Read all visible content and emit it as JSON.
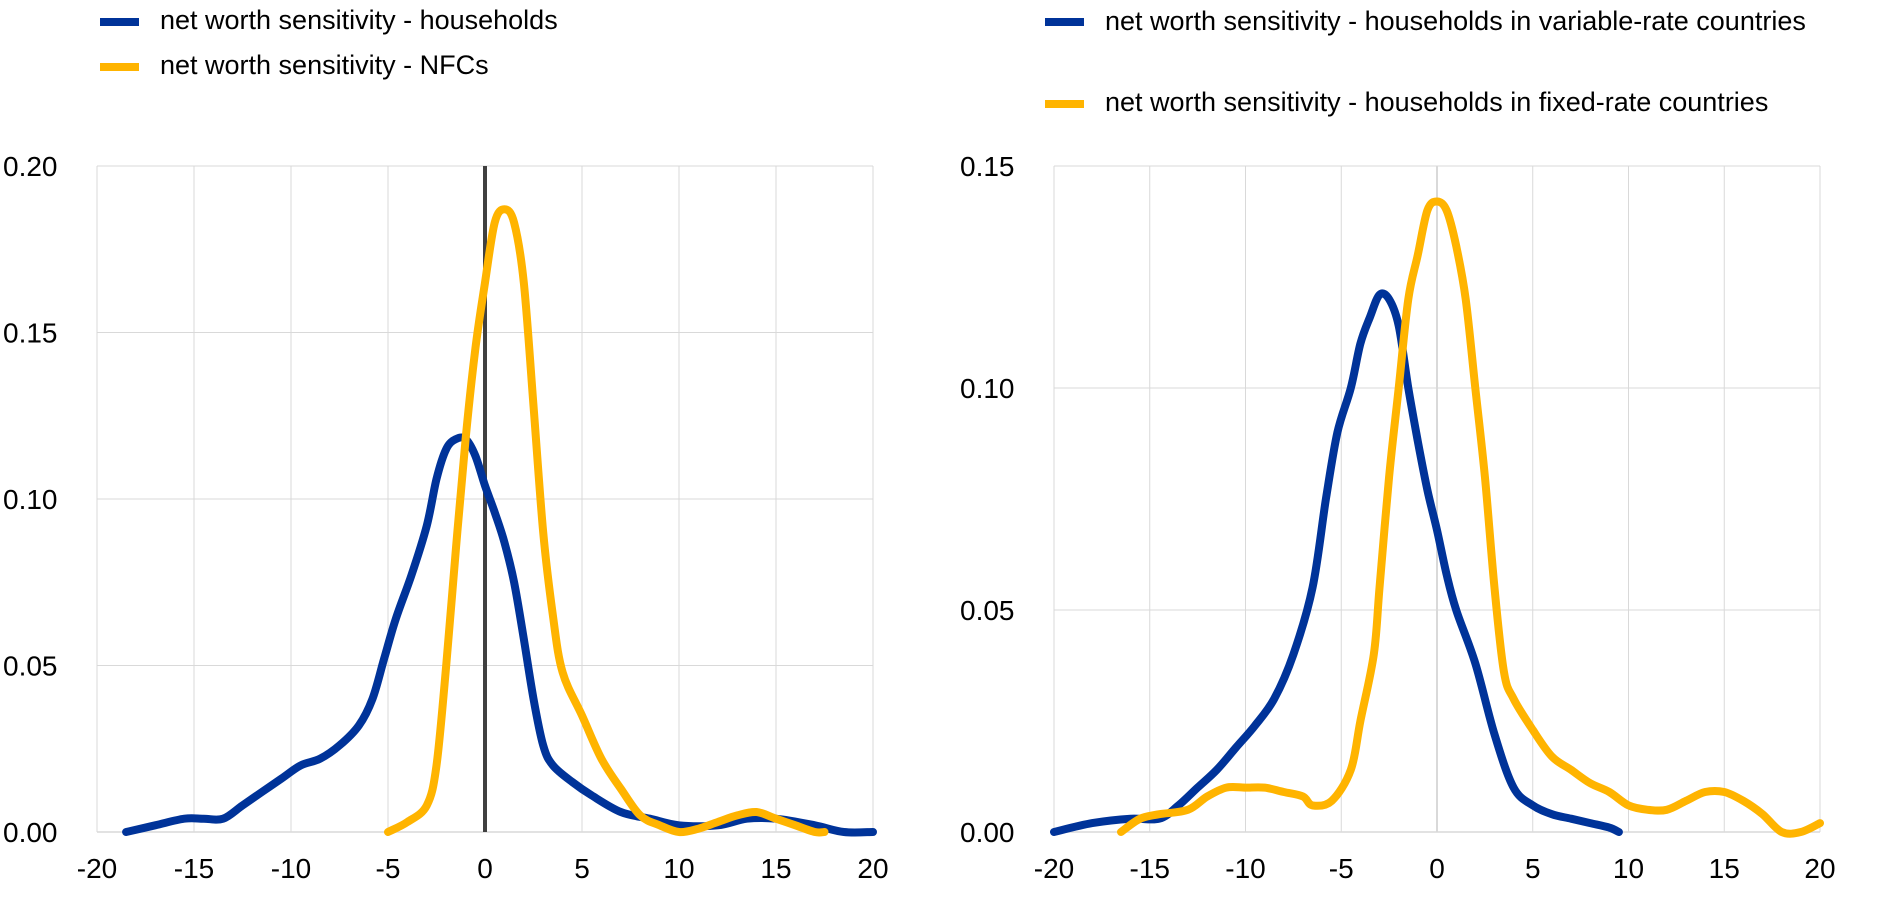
{
  "colors": {
    "households": "#003399",
    "nfcs": "#FFB400",
    "grid": "#d9d9d9",
    "zero_line": "#404040"
  },
  "chart_data": [
    {
      "type": "line",
      "panel": "left",
      "xlim": [
        -20,
        20
      ],
      "ylim": [
        0,
        0.2
      ],
      "xticks": [
        "-20",
        "-15",
        "-10",
        "-5",
        "0",
        "5",
        "10",
        "15",
        "20"
      ],
      "yticks": [
        "0.00",
        "0.05",
        "0.10",
        "0.15",
        "0.20"
      ],
      "grid": true,
      "vertical_zero_line": true,
      "legend": "top-left",
      "series": [
        {
          "name": "net worth sensitivity - households",
          "color": "#003399",
          "points": [
            [
              -18.5,
              0.0
            ],
            [
              -17,
              0.002
            ],
            [
              -15.5,
              0.004
            ],
            [
              -14.5,
              0.004
            ],
            [
              -13.5,
              0.004
            ],
            [
              -12.5,
              0.008
            ],
            [
              -11.5,
              0.012
            ],
            [
              -10.5,
              0.016
            ],
            [
              -9.5,
              0.02
            ],
            [
              -8.5,
              0.022
            ],
            [
              -7.5,
              0.026
            ],
            [
              -6.5,
              0.032
            ],
            [
              -5.8,
              0.04
            ],
            [
              -5.2,
              0.052
            ],
            [
              -4.6,
              0.064
            ],
            [
              -3.8,
              0.077
            ],
            [
              -3.0,
              0.092
            ],
            [
              -2.5,
              0.106
            ],
            [
              -2.0,
              0.115
            ],
            [
              -1.5,
              0.118
            ],
            [
              -1.0,
              0.118
            ],
            [
              -0.5,
              0.113
            ],
            [
              0.0,
              0.104
            ],
            [
              0.5,
              0.096
            ],
            [
              1.0,
              0.087
            ],
            [
              1.5,
              0.075
            ],
            [
              2.0,
              0.058
            ],
            [
              2.5,
              0.04
            ],
            [
              3.0,
              0.026
            ],
            [
              3.5,
              0.02
            ],
            [
              4.5,
              0.015
            ],
            [
              5.5,
              0.011
            ],
            [
              7.0,
              0.006
            ],
            [
              8.5,
              0.004
            ],
            [
              10.0,
              0.002
            ],
            [
              12.0,
              0.002
            ],
            [
              13.5,
              0.004
            ],
            [
              15.0,
              0.004
            ],
            [
              17.0,
              0.002
            ],
            [
              18.5,
              0.0
            ],
            [
              20.0,
              0.0
            ]
          ]
        },
        {
          "name": "net worth sensitivity - NFCs",
          "color": "#FFB400",
          "points": [
            [
              -5.0,
              0.0
            ],
            [
              -4.0,
              0.003
            ],
            [
              -3.0,
              0.008
            ],
            [
              -2.5,
              0.02
            ],
            [
              -2.0,
              0.05
            ],
            [
              -1.5,
              0.085
            ],
            [
              -1.0,
              0.118
            ],
            [
              -0.5,
              0.145
            ],
            [
              0.0,
              0.165
            ],
            [
              0.5,
              0.183
            ],
            [
              1.0,
              0.187
            ],
            [
              1.5,
              0.183
            ],
            [
              2.0,
              0.165
            ],
            [
              2.5,
              0.128
            ],
            [
              3.0,
              0.09
            ],
            [
              3.5,
              0.065
            ],
            [
              4.0,
              0.048
            ],
            [
              5.0,
              0.035
            ],
            [
              6.0,
              0.022
            ],
            [
              7.0,
              0.013
            ],
            [
              8.0,
              0.005
            ],
            [
              9.0,
              0.002
            ],
            [
              10.0,
              0.0
            ],
            [
              11.0,
              0.001
            ],
            [
              12.0,
              0.003
            ],
            [
              13.0,
              0.005
            ],
            [
              14.0,
              0.006
            ],
            [
              15.0,
              0.004
            ],
            [
              16.0,
              0.002
            ],
            [
              17.0,
              0.0
            ],
            [
              17.5,
              0.0
            ]
          ]
        }
      ]
    },
    {
      "type": "line",
      "panel": "right",
      "xlim": [
        -20,
        20
      ],
      "ylim": [
        0,
        0.15
      ],
      "xticks": [
        "-20",
        "-15",
        "-10",
        "-5",
        "0",
        "5",
        "10",
        "15",
        "20"
      ],
      "yticks": [
        "0.00",
        "0.05",
        "0.10",
        "0.15"
      ],
      "grid": true,
      "vertical_zero_line": true,
      "legend": "top-left",
      "series": [
        {
          "name": "net worth sensitivity - households in variable-rate countries",
          "color": "#003399",
          "points": [
            [
              -20.0,
              0.0
            ],
            [
              -18.0,
              0.002
            ],
            [
              -16.0,
              0.003
            ],
            [
              -14.5,
              0.003
            ],
            [
              -13.5,
              0.006
            ],
            [
              -12.5,
              0.01
            ],
            [
              -11.5,
              0.014
            ],
            [
              -10.5,
              0.019
            ],
            [
              -9.5,
              0.024
            ],
            [
              -8.5,
              0.03
            ],
            [
              -7.5,
              0.04
            ],
            [
              -6.5,
              0.055
            ],
            [
              -5.8,
              0.075
            ],
            [
              -5.2,
              0.09
            ],
            [
              -4.5,
              0.1
            ],
            [
              -4.0,
              0.11
            ],
            [
              -3.5,
              0.116
            ],
            [
              -3.0,
              0.121
            ],
            [
              -2.5,
              0.12
            ],
            [
              -2.0,
              0.114
            ],
            [
              -1.5,
              0.1
            ],
            [
              -1.0,
              0.088
            ],
            [
              -0.5,
              0.077
            ],
            [
              0.0,
              0.068
            ],
            [
              0.5,
              0.058
            ],
            [
              1.0,
              0.05
            ],
            [
              2.0,
              0.038
            ],
            [
              3.0,
              0.022
            ],
            [
              4.0,
              0.01
            ],
            [
              5.0,
              0.006
            ],
            [
              6.0,
              0.004
            ],
            [
              7.0,
              0.003
            ],
            [
              8.0,
              0.002
            ],
            [
              9.0,
              0.001
            ],
            [
              9.5,
              0.0
            ]
          ]
        },
        {
          "name": "net worth sensitivity - households in fixed-rate countries",
          "color": "#FFB400",
          "points": [
            [
              -16.5,
              0.0
            ],
            [
              -15.5,
              0.003
            ],
            [
              -14.5,
              0.004
            ],
            [
              -13.0,
              0.005
            ],
            [
              -12.0,
              0.008
            ],
            [
              -11.0,
              0.01
            ],
            [
              -10.0,
              0.01
            ],
            [
              -9.0,
              0.01
            ],
            [
              -8.0,
              0.009
            ],
            [
              -7.0,
              0.008
            ],
            [
              -6.5,
              0.006
            ],
            [
              -5.5,
              0.007
            ],
            [
              -4.5,
              0.014
            ],
            [
              -4.0,
              0.025
            ],
            [
              -3.3,
              0.04
            ],
            [
              -3.0,
              0.055
            ],
            [
              -2.5,
              0.08
            ],
            [
              -2.0,
              0.1
            ],
            [
              -1.5,
              0.12
            ],
            [
              -1.0,
              0.13
            ],
            [
              -0.5,
              0.14
            ],
            [
              0.0,
              0.142
            ],
            [
              0.5,
              0.14
            ],
            [
              1.0,
              0.132
            ],
            [
              1.5,
              0.12
            ],
            [
              2.0,
              0.1
            ],
            [
              2.5,
              0.08
            ],
            [
              3.0,
              0.055
            ],
            [
              3.5,
              0.036
            ],
            [
              4.0,
              0.03
            ],
            [
              5.0,
              0.023
            ],
            [
              6.0,
              0.017
            ],
            [
              7.0,
              0.014
            ],
            [
              8.0,
              0.011
            ],
            [
              9.0,
              0.009
            ],
            [
              10.0,
              0.006
            ],
            [
              11.0,
              0.005
            ],
            [
              12.0,
              0.005
            ],
            [
              13.0,
              0.007
            ],
            [
              14.0,
              0.009
            ],
            [
              15.0,
              0.009
            ],
            [
              16.0,
              0.007
            ],
            [
              17.0,
              0.004
            ],
            [
              18.0,
              0.0
            ],
            [
              19.0,
              0.0
            ],
            [
              20.0,
              0.002
            ]
          ]
        }
      ]
    }
  ]
}
